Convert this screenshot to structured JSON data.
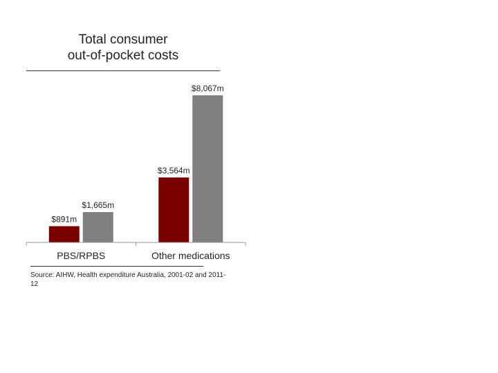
{
  "chart_data": {
    "type": "bar",
    "title": "Total consumer out-of-pocket costs",
    "title_lines": [
      "Total consumer",
      "out-of-pocket costs"
    ],
    "categories": [
      "PBS/RPBS",
      "Other medications"
    ],
    "series": [
      {
        "values": [
          891,
          3564
        ],
        "labels": [
          "$891m",
          "$3,564m"
        ],
        "color": "#7a0000"
      },
      {
        "values": [
          1665,
          8067
        ],
        "labels": [
          "$1,665m",
          "$8,067m"
        ],
        "color": "#7f7f7f"
      }
    ],
    "ylim": [
      0,
      8067
    ],
    "xlabel": "",
    "ylabel": "",
    "grid": false,
    "legend": "none"
  },
  "source": "Source: AIHW, Health expenditure Australia, 2001-02 and 2011-12"
}
